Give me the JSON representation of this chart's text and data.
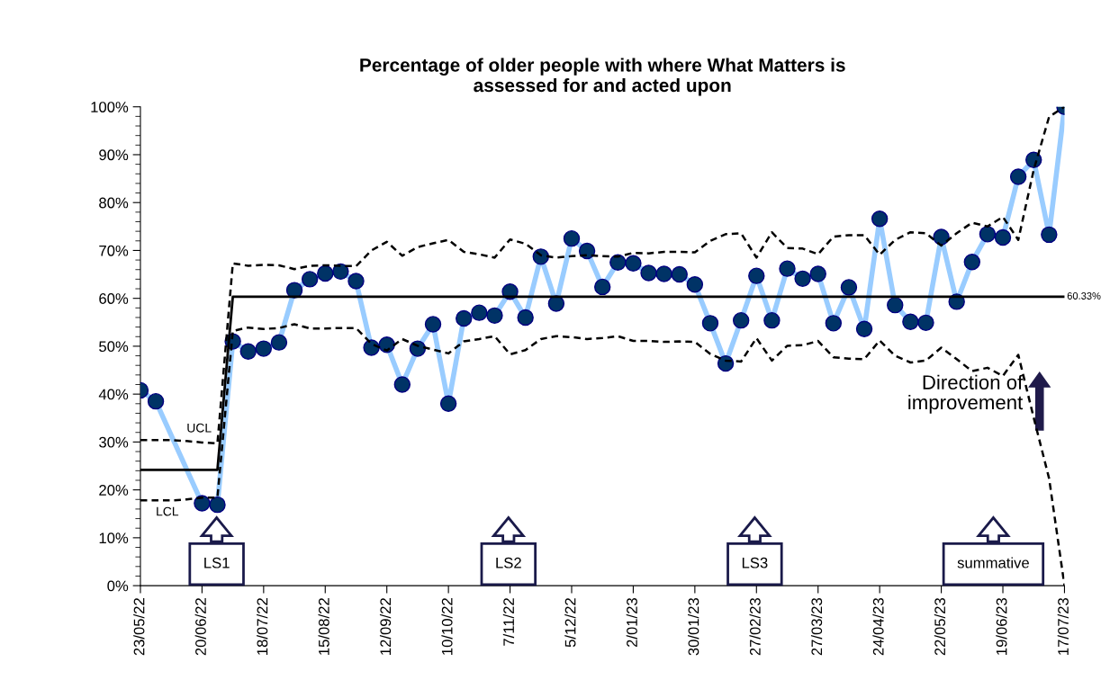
{
  "chart_data": {
    "type": "line",
    "title": "Percentage of older people with where What Matters is\nassessed for and acted upon",
    "x": [
      "2022-05-23",
      "2022-05-30",
      "2022-06-06",
      "2022-06-13",
      "2022-06-20",
      "2022-06-27",
      "2022-07-04",
      "2022-07-11",
      "2022-07-18",
      "2022-07-25",
      "2022-08-01",
      "2022-08-08",
      "2022-08-15",
      "2022-08-22",
      "2022-08-29",
      "2022-09-05",
      "2022-09-12",
      "2022-09-19",
      "2022-09-26",
      "2022-10-03",
      "2022-10-10",
      "2022-10-17",
      "2022-10-24",
      "2022-10-31",
      "2022-11-07",
      "2022-11-14",
      "2022-11-21",
      "2022-11-28",
      "2022-12-05",
      "2022-12-12",
      "2022-12-19",
      "2022-12-26",
      "2023-01-02",
      "2023-01-09",
      "2023-01-16",
      "2023-01-23",
      "2023-01-30",
      "2023-02-06",
      "2023-02-13",
      "2023-02-20",
      "2023-02-27",
      "2023-03-06",
      "2023-03-13",
      "2023-03-20",
      "2023-03-27",
      "2023-04-03",
      "2023-04-10",
      "2023-04-17",
      "2023-04-24",
      "2023-05-01",
      "2023-05-08",
      "2023-05-15",
      "2023-05-22",
      "2023-05-29",
      "2023-06-05",
      "2023-06-12",
      "2023-06-19",
      "2023-06-26",
      "2023-07-03",
      "2023-07-10",
      "2023-07-17"
    ],
    "series": [
      {
        "color": "#000000",
        "line_style": "solid",
        "marker": "none",
        "values": [
          24.2,
          24.2,
          24.2,
          24.2,
          24.2,
          24.2,
          60.33,
          60.33,
          60.33,
          60.33,
          60.33,
          60.33,
          60.33,
          60.33,
          60.33,
          60.33,
          60.33,
          60.33,
          60.33,
          60.33,
          60.33,
          60.33,
          60.33,
          60.33,
          60.33,
          60.33,
          60.33,
          60.33,
          60.33,
          60.33,
          60.33,
          60.33,
          60.33,
          60.33,
          60.33,
          60.33,
          60.33,
          60.33,
          60.33,
          60.33,
          60.33,
          60.33,
          60.33,
          60.33,
          60.33,
          60.33,
          60.33,
          60.33,
          60.33,
          60.33,
          60.33,
          60.33,
          60.33,
          60.33,
          60.33,
          60.33,
          60.33,
          60.33,
          60.33,
          60.33,
          60.33
        ]
      },
      {
        "name": "UCL",
        "color": "#000000",
        "line_style": "dashed",
        "marker": "none",
        "values": [
          30.4,
          30.4,
          30.4,
          30.2,
          29.9,
          29.7,
          67.3,
          66.8,
          67.0,
          66.9,
          66.1,
          66.8,
          66.9,
          66.8,
          66.7,
          70.0,
          71.8,
          68.9,
          70.7,
          71.5,
          72.2,
          69.7,
          69.2,
          68.5,
          72.3,
          71.4,
          69.0,
          68.5,
          68.8,
          69.0,
          68.8,
          68.7,
          69.5,
          69.4,
          69.7,
          69.7,
          69.6,
          72.0,
          73.4,
          73.6,
          68.5,
          73.8,
          70.5,
          70.4,
          69.2,
          72.9,
          73.2,
          73.2,
          69.1,
          72.2,
          73.8,
          73.6,
          71.0,
          73.6,
          75.8,
          75.0,
          77.0,
          72.2,
          86.8,
          97.9,
          100
        ]
      },
      {
        "name": "LCL",
        "color": "#000000",
        "line_style": "dashed",
        "marker": "none",
        "values": [
          17.8,
          17.8,
          17.8,
          18.0,
          18.4,
          18.4,
          53.2,
          53.9,
          53.6,
          53.8,
          54.6,
          53.7,
          53.7,
          53.8,
          53.8,
          50.5,
          49.1,
          51.5,
          50.1,
          49.3,
          48.5,
          51.0,
          51.5,
          52.1,
          48.3,
          49.2,
          51.5,
          52.1,
          51.9,
          51.5,
          51.7,
          52.1,
          51.1,
          51.1,
          50.9,
          51.0,
          50.9,
          48.4,
          47.0,
          46.8,
          51.7,
          47.0,
          50.1,
          50.2,
          51.1,
          47.7,
          47.4,
          47.3,
          51.2,
          48.0,
          46.6,
          47.0,
          49.7,
          47.3,
          44.8,
          45.5,
          43.8,
          48.2,
          35.1,
          22.4,
          0
        ]
      },
      {
        "color": "#99ccff",
        "line_style": "solid",
        "marker": "circle",
        "colors": [
          "#003366",
          "#003366",
          "#003366",
          "#003366",
          "#003366",
          "#003366",
          "#003366",
          "#003366",
          "#003366",
          "#003366",
          "#003366",
          "#003366",
          "#003366",
          "#003366",
          "#003366",
          "#003366",
          "#003366",
          "#003366",
          "#003366",
          "#003366",
          "#003366",
          "#003366",
          "#003366",
          "#003366",
          "#003366",
          "#003366",
          "#003366",
          "#003366",
          "#003366",
          "#003366",
          "#003366",
          "#003366",
          "#003366",
          "#003366",
          "#003366",
          "#003366",
          "#003366",
          "#003366",
          "#003366",
          "#003366",
          "#003366",
          "#003366",
          "#003366",
          "#003366",
          "#003366",
          "#003366",
          "#003366",
          "#003366",
          "#003366",
          "#003366",
          "#003366",
          "#003366",
          "#003366",
          "#003366",
          "#003366",
          "#003366",
          "#003366",
          "#003366",
          "#003366",
          "#003366",
          "#003366"
        ],
        "values": [
          40.8,
          38.5,
          null,
          null,
          17.2,
          16.9,
          51.0,
          48.9,
          49.5,
          50.8,
          61.7,
          64.0,
          65.2,
          65.6,
          63.6,
          49.7,
          50.3,
          42.0,
          49.5,
          54.6,
          38.0,
          55.8,
          57.0,
          56.4,
          61.4,
          56.0,
          68.7,
          58.9,
          72.5,
          69.9,
          62.4,
          67.5,
          67.3,
          65.3,
          65.1,
          65.0,
          62.9,
          54.8,
          46.4,
          55.4,
          64.7,
          55.4,
          66.2,
          64.1,
          65.1,
          54.8,
          62.3,
          53.6,
          76.6,
          58.6,
          55.1,
          54.9,
          72.8,
          59.3,
          67.6,
          73.4,
          72.7,
          85.4,
          88.9,
          73.3,
          100
        ]
      }
    ],
    "xlim": [
      "2022-05-23",
      "2023-07-17"
    ],
    "xticks": [
      {
        "value": "2022-05-23",
        "label": "23/05/22"
      },
      {
        "value": "2022-06-20",
        "label": "20/06/22"
      },
      {
        "value": "2022-07-18",
        "label": "18/07/22"
      },
      {
        "value": "2022-08-15",
        "label": "15/08/22"
      },
      {
        "value": "2022-09-12",
        "label": "12/09/22"
      },
      {
        "value": "2022-10-10",
        "label": "10/10/22"
      },
      {
        "value": "2022-11-07",
        "label": "7/11/22"
      },
      {
        "value": "2022-12-05",
        "label": "5/12/22"
      },
      {
        "value": "2023-01-02",
        "label": "2/01/23"
      },
      {
        "value": "2023-01-30",
        "label": "30/01/23"
      },
      {
        "value": "2023-02-27",
        "label": "27/02/23"
      },
      {
        "value": "2023-03-27",
        "label": "27/03/23"
      },
      {
        "value": "2023-04-24",
        "label": "24/04/23"
      },
      {
        "value": "2023-05-22",
        "label": "22/05/23"
      },
      {
        "value": "2023-06-19",
        "label": "19/06/23"
      },
      {
        "value": "2023-07-17",
        "label": "17/07/23"
      }
    ],
    "ylim": [
      0,
      100
    ],
    "yticks": [
      {
        "value": 0,
        "label": "0%"
      },
      {
        "value": 10,
        "label": "10%"
      },
      {
        "value": 20,
        "label": "20%"
      },
      {
        "value": 30,
        "label": "30%"
      },
      {
        "value": 40,
        "label": "40%"
      },
      {
        "value": 50,
        "label": "50%"
      },
      {
        "value": 60,
        "label": "60%"
      },
      {
        "value": 70,
        "label": "70%"
      },
      {
        "value": 80,
        "label": "80%"
      },
      {
        "value": 90,
        "label": "90%"
      },
      {
        "value": 100,
        "label": "100%"
      }
    ],
    "grid": false,
    "legend": false,
    "annotations": [
      {
        "text": "60.33%",
        "x": "2023-07-17",
        "y": 60.33
      },
      "LS1",
      "LS2",
      "LS3",
      "summative",
      "Direction of\nimprovement"
    ]
  }
}
